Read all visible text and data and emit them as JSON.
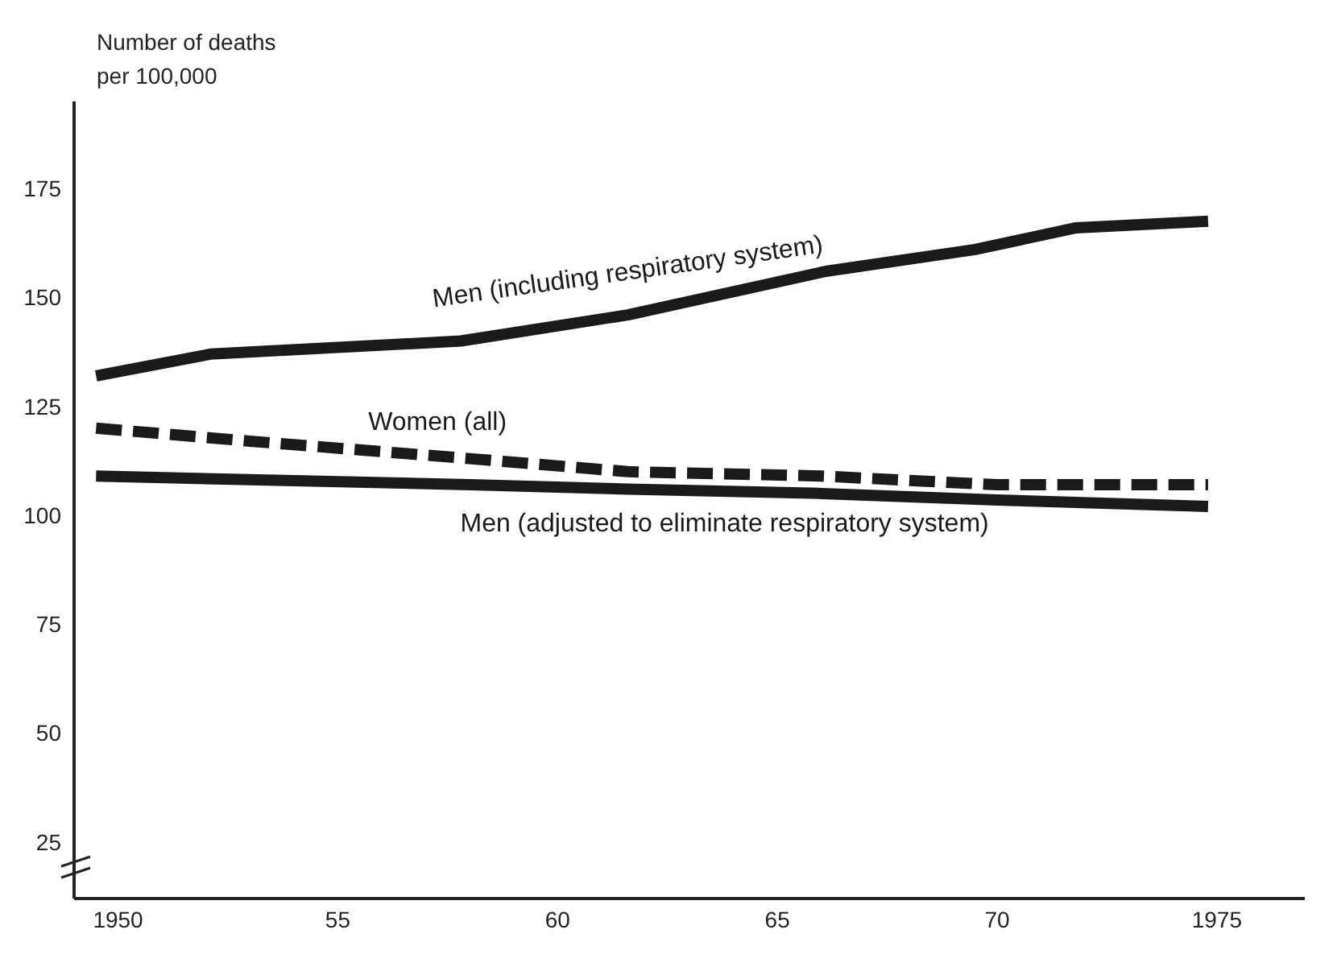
{
  "chart_data": {
    "type": "line",
    "ylabel": "Number of deaths per 100,000",
    "xlim": [
      1949,
      1977
    ],
    "xticks": [
      1950,
      {
        "value": 1955,
        "label": "55"
      },
      {
        "value": 1960,
        "label": "60"
      },
      {
        "value": 1965,
        "label": "65"
      },
      {
        "value": 1970,
        "label": "70"
      },
      1975
    ],
    "ylim": [
      12,
      195
    ],
    "yticks": [
      25,
      50,
      75,
      100,
      125,
      150,
      175
    ],
    "marker": "none",
    "series": [
      {
        "name": "Men (including respiratory system)",
        "color": "#1a1a1a",
        "line_style": "solid",
        "x": [
          1949.5,
          1952.1,
          1957.8,
          1961.6,
          1966.1,
          1969.5,
          1971.8,
          1974.8
        ],
        "values": [
          132,
          137,
          140,
          146,
          156,
          161,
          166,
          167.5
        ]
      },
      {
        "name": "Women (all)",
        "color": "#1a1a1a",
        "line_style": "dashed",
        "x": [
          1949.5,
          1953,
          1958,
          1961.6,
          1966,
          1970,
          1974.8
        ],
        "values": [
          120,
          117,
          113,
          110,
          109,
          107,
          107
        ]
      },
      {
        "name": "Men (adjusted to eliminate respiratory system)",
        "color": "#1a1a1a",
        "line_style": "solid",
        "x": [
          1949.5,
          1958,
          1961.6,
          1966,
          1970,
          1974.8
        ],
        "values": [
          109,
          107,
          106,
          105,
          103.5,
          102
        ]
      }
    ]
  }
}
